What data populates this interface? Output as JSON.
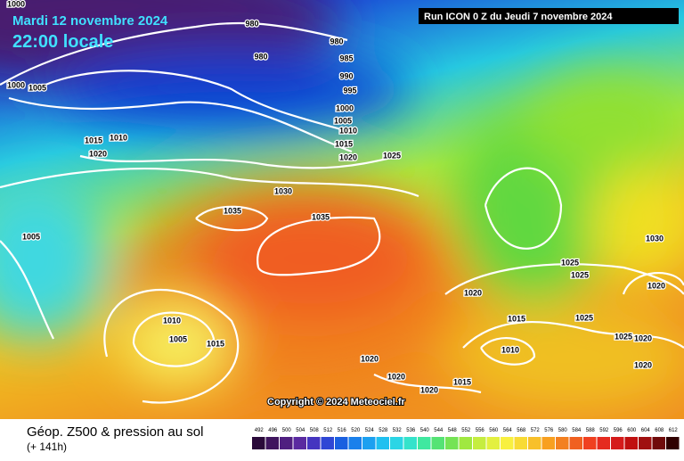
{
  "header": {
    "date": "Mardi 12 novembre 2024",
    "local_time": "22:00 locale",
    "run": "Run ICON 0 Z du Jeudi 7 novembre 2024"
  },
  "isobar_labels": [
    "1000",
    "980",
    "980",
    "980",
    "1000",
    "1005",
    "985",
    "990",
    "995",
    "1000",
    "1005",
    "1010",
    "1015",
    "1020",
    "1015",
    "1010",
    "1020",
    "1025",
    "1030",
    "1035",
    "1035",
    "1005",
    "1010",
    "1005",
    "1015",
    "1020",
    "1025",
    "1025",
    "1030",
    "1020",
    "1015",
    "1025",
    "1025",
    "1020",
    "1010",
    "1020",
    "1020",
    "1020",
    "1015",
    "1020"
  ],
  "copyright": "Copyright © 2024 Meteociel.fr",
  "footer": {
    "title": "Géop. Z500 & pression au sol",
    "lead_time": "(+ 141h)"
  },
  "colorbar": {
    "ticks": [
      492,
      496,
      500,
      504,
      508,
      512,
      516,
      520,
      524,
      528,
      532,
      536,
      540,
      544,
      548,
      552,
      556,
      560,
      564,
      568,
      572,
      576,
      580,
      584,
      588,
      592,
      596,
      600,
      604,
      608,
      612
    ]
  }
}
